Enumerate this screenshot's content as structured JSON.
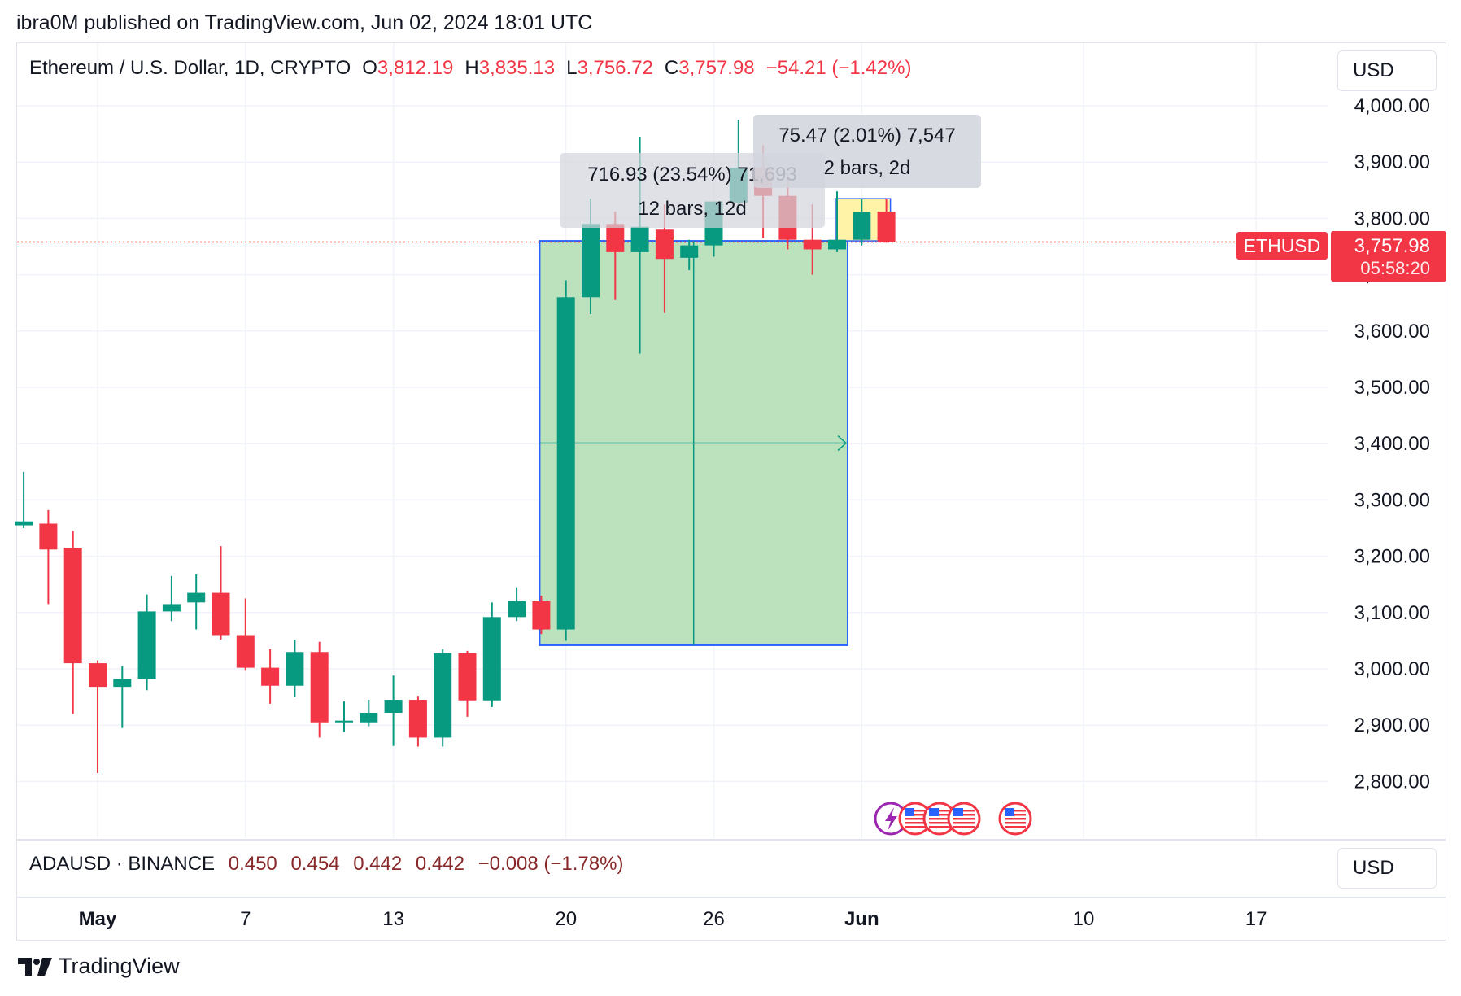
{
  "header": {
    "text": "ibra0M published on TradingView.com, Jun 02, 2024 18:01 UTC"
  },
  "legend": {
    "title": "Ethereum / U.S. Dollar, 1D, CRYPTO",
    "o_label": "O",
    "o_value": "3,812.19",
    "h_label": "H",
    "h_value": "3,835.13",
    "l_label": "L",
    "l_value": "3,756.72",
    "c_label": "C",
    "c_value": "3,757.98",
    "change": "−54.21 (−1.42%)"
  },
  "currency_button": "USD",
  "sub_legend": {
    "symbol": "ADAUSD · BINANCE",
    "values": [
      "0.450",
      "0.454",
      "0.442",
      "0.442",
      "−0.008 (−1.78%)"
    ]
  },
  "sub_currency_button": "USD",
  "price_tag": {
    "symbol": "ETHUSD",
    "price": "3,757.98",
    "countdown": "05:58:20"
  },
  "measure_1": {
    "line1": "716.93 (23.54%) 71,693",
    "line2": "12 bars, 12d"
  },
  "measure_2": {
    "line1": "75.47 (2.01%) 7,547",
    "line2": "2 bars, 2d"
  },
  "brand": "TradingView",
  "colors": {
    "up": "#089981",
    "down": "#f23645",
    "measure_fill": "#b7dfb9",
    "measure_border": "#2962ff"
  },
  "chart_data": {
    "type": "candlestick",
    "y_ticks": [
      "4,000.00",
      "3,900.00",
      "3,800.00",
      "3,700.00",
      "3,600.00",
      "3,500.00",
      "3,400.00",
      "3,300.00",
      "3,200.00",
      "3,100.00",
      "3,000.00",
      "2,900.00",
      "2,800.00"
    ],
    "y_tick_values": [
      4000,
      3900,
      3800,
      3700,
      3600,
      3500,
      3400,
      3300,
      3200,
      3100,
      3000,
      2900,
      2800
    ],
    "x_ticks": [
      {
        "label": "May",
        "day": 1,
        "bold": true
      },
      {
        "label": "7",
        "day": 7
      },
      {
        "label": "13",
        "day": 13
      },
      {
        "label": "20",
        "day": 20
      },
      {
        "label": "26",
        "day": 26
      },
      {
        "label": "Jun",
        "day": 32,
        "bold": true
      },
      {
        "label": "10",
        "day": 41
      },
      {
        "label": "17",
        "day": 48
      }
    ],
    "candles": [
      {
        "day": -2,
        "o": 3255,
        "h": 3350,
        "l": 3250,
        "c": 3262
      },
      {
        "day": -1,
        "o": 3258,
        "h": 3282,
        "l": 3115,
        "c": 3212
      },
      {
        "day": 0,
        "o": 3215,
        "h": 3245,
        "l": 2920,
        "c": 3010
      },
      {
        "day": 1,
        "o": 3010,
        "h": 3015,
        "l": 2815,
        "c": 2968
      },
      {
        "day": 2,
        "o": 2968,
        "h": 3005,
        "l": 2895,
        "c": 2982
      },
      {
        "day": 3,
        "o": 2982,
        "h": 3132,
        "l": 2962,
        "c": 3102
      },
      {
        "day": 4,
        "o": 3102,
        "h": 3165,
        "l": 3085,
        "c": 3115
      },
      {
        "day": 5,
        "o": 3118,
        "h": 3168,
        "l": 3070,
        "c": 3135
      },
      {
        "day": 6,
        "o": 3135,
        "h": 3218,
        "l": 3052,
        "c": 3060
      },
      {
        "day": 7,
        "o": 3060,
        "h": 3125,
        "l": 2998,
        "c": 3002
      },
      {
        "day": 8,
        "o": 3002,
        "h": 3035,
        "l": 2938,
        "c": 2970
      },
      {
        "day": 9,
        "o": 2970,
        "h": 3052,
        "l": 2950,
        "c": 3030
      },
      {
        "day": 10,
        "o": 3030,
        "h": 3048,
        "l": 2878,
        "c": 2905
      },
      {
        "day": 11,
        "o": 2905,
        "h": 2942,
        "l": 2888,
        "c": 2908
      },
      {
        "day": 12,
        "o": 2905,
        "h": 2945,
        "l": 2898,
        "c": 2922
      },
      {
        "day": 13,
        "o": 2922,
        "h": 2988,
        "l": 2863,
        "c": 2945
      },
      {
        "day": 14,
        "o": 2945,
        "h": 2952,
        "l": 2862,
        "c": 2878
      },
      {
        "day": 15,
        "o": 2878,
        "h": 3035,
        "l": 2862,
        "c": 3028
      },
      {
        "day": 16,
        "o": 3028,
        "h": 3032,
        "l": 2915,
        "c": 2944
      },
      {
        "day": 17,
        "o": 2944,
        "h": 3118,
        "l": 2932,
        "c": 3092
      },
      {
        "day": 18,
        "o": 3092,
        "h": 3145,
        "l": 3085,
        "c": 3120
      },
      {
        "day": 19,
        "o": 3120,
        "h": 3130,
        "l": 3062,
        "c": 3070
      },
      {
        "day": 20,
        "o": 3070,
        "h": 3690,
        "l": 3050,
        "c": 3660
      },
      {
        "day": 21,
        "o": 3660,
        "h": 3835,
        "l": 3630,
        "c": 3790
      },
      {
        "day": 22,
        "o": 3790,
        "h": 3812,
        "l": 3655,
        "c": 3740
      },
      {
        "day": 23,
        "o": 3740,
        "h": 3945,
        "l": 3560,
        "c": 3785
      },
      {
        "day": 24,
        "o": 3780,
        "h": 3825,
        "l": 3632,
        "c": 3728
      },
      {
        "day": 25,
        "o": 3730,
        "h": 3762,
        "l": 3708,
        "c": 3752
      },
      {
        "day": 26,
        "o": 3752,
        "h": 3825,
        "l": 3732,
        "c": 3830
      },
      {
        "day": 27,
        "o": 3828,
        "h": 3975,
        "l": 3822,
        "c": 3890
      },
      {
        "day": 28,
        "o": 3890,
        "h": 3930,
        "l": 3765,
        "c": 3840
      },
      {
        "day": 29,
        "o": 3840,
        "h": 3880,
        "l": 3745,
        "c": 3762
      },
      {
        "day": 30,
        "o": 3762,
        "h": 3825,
        "l": 3700,
        "c": 3745
      },
      {
        "day": 31,
        "o": 3745,
        "h": 3848,
        "l": 3740,
        "c": 3762
      },
      {
        "day": 32,
        "o": 3762,
        "h": 3835,
        "l": 3752,
        "c": 3812
      },
      {
        "day": 33,
        "o": 3812.19,
        "h": 3835.13,
        "l": 3756.72,
        "c": 3757.98
      }
    ],
    "current_price": 3757.98,
    "measure_1_range": {
      "day_start": 19,
      "day_end": 31,
      "price_low": 3042,
      "price_high": 3760
    },
    "measure_2_range": {
      "day_start": 31,
      "day_end": 33,
      "price_low": 3760,
      "price_high": 3835
    }
  }
}
